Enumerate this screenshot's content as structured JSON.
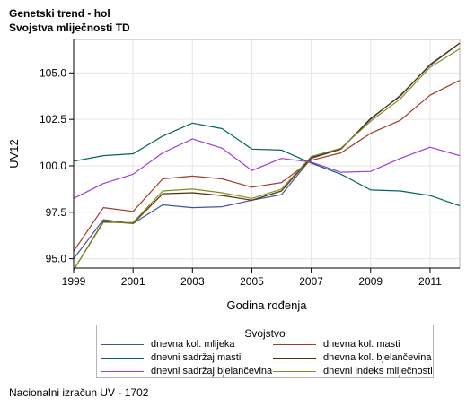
{
  "titles": {
    "line1": "Genetski trend - hol",
    "line2": "Svojstva mliječnosti TD"
  },
  "footnote": "Nacionalni izračun UV - 1702",
  "chart_data": {
    "type": "line",
    "xlabel": "Godina rođenja",
    "ylabel": "UV12",
    "xlim": [
      1999,
      2012
    ],
    "ylim": [
      94.5,
      106.8
    ],
    "x_ticks": [
      "1999",
      "2001",
      "2003",
      "2005",
      "2007",
      "2009",
      "2011"
    ],
    "y_ticks": [
      "95.0",
      "97.5",
      "100.0",
      "102.5",
      "105.0"
    ],
    "grid": true,
    "legend_title": "Svojstvo",
    "legend_position": "bottom",
    "x": [
      1999,
      2000,
      2001,
      2002,
      2003,
      2004,
      2005,
      2006,
      2007,
      2008,
      2009,
      2010,
      2011,
      2012
    ],
    "series": [
      {
        "name": "dnevna kol. mlijeka",
        "color": "#445694",
        "values": [
          95.0,
          97.1,
          96.9,
          97.9,
          97.75,
          97.8,
          98.15,
          98.45,
          100.4,
          100.9,
          102.5,
          103.8,
          105.4,
          106.6
        ]
      },
      {
        "name": "dnevna kol. masti",
        "color": "#A23A2E",
        "values": [
          95.4,
          97.75,
          97.55,
          99.3,
          99.45,
          99.3,
          98.85,
          99.1,
          100.3,
          100.7,
          101.75,
          102.45,
          103.8,
          104.6
        ]
      },
      {
        "name": "dnevni sadržaj masti",
        "color": "#01665E",
        "values": [
          100.25,
          100.55,
          100.65,
          101.6,
          102.3,
          102.0,
          100.9,
          100.85,
          100.15,
          99.55,
          98.7,
          98.65,
          98.4,
          97.85
        ]
      },
      {
        "name": "dnevna kol. bjelančevina",
        "color": "#543005",
        "values": [
          94.4,
          97.0,
          96.9,
          98.5,
          98.55,
          98.4,
          98.15,
          98.65,
          100.45,
          100.9,
          102.55,
          103.75,
          105.45,
          106.6
        ]
      },
      {
        "name": "dnevni sadržaj bjelančevina",
        "color": "#9D3CDB",
        "values": [
          98.25,
          99.05,
          99.55,
          100.7,
          101.45,
          100.95,
          99.75,
          100.4,
          100.2,
          99.65,
          99.7,
          100.4,
          101.0,
          100.55
        ]
      },
      {
        "name": "dnevni indeks mliječnosti",
        "color": "#7F8E1F",
        "values": [
          94.4,
          96.95,
          96.95,
          98.65,
          98.75,
          98.55,
          98.25,
          98.75,
          100.5,
          100.95,
          102.4,
          103.6,
          105.3,
          106.3
        ]
      }
    ]
  }
}
